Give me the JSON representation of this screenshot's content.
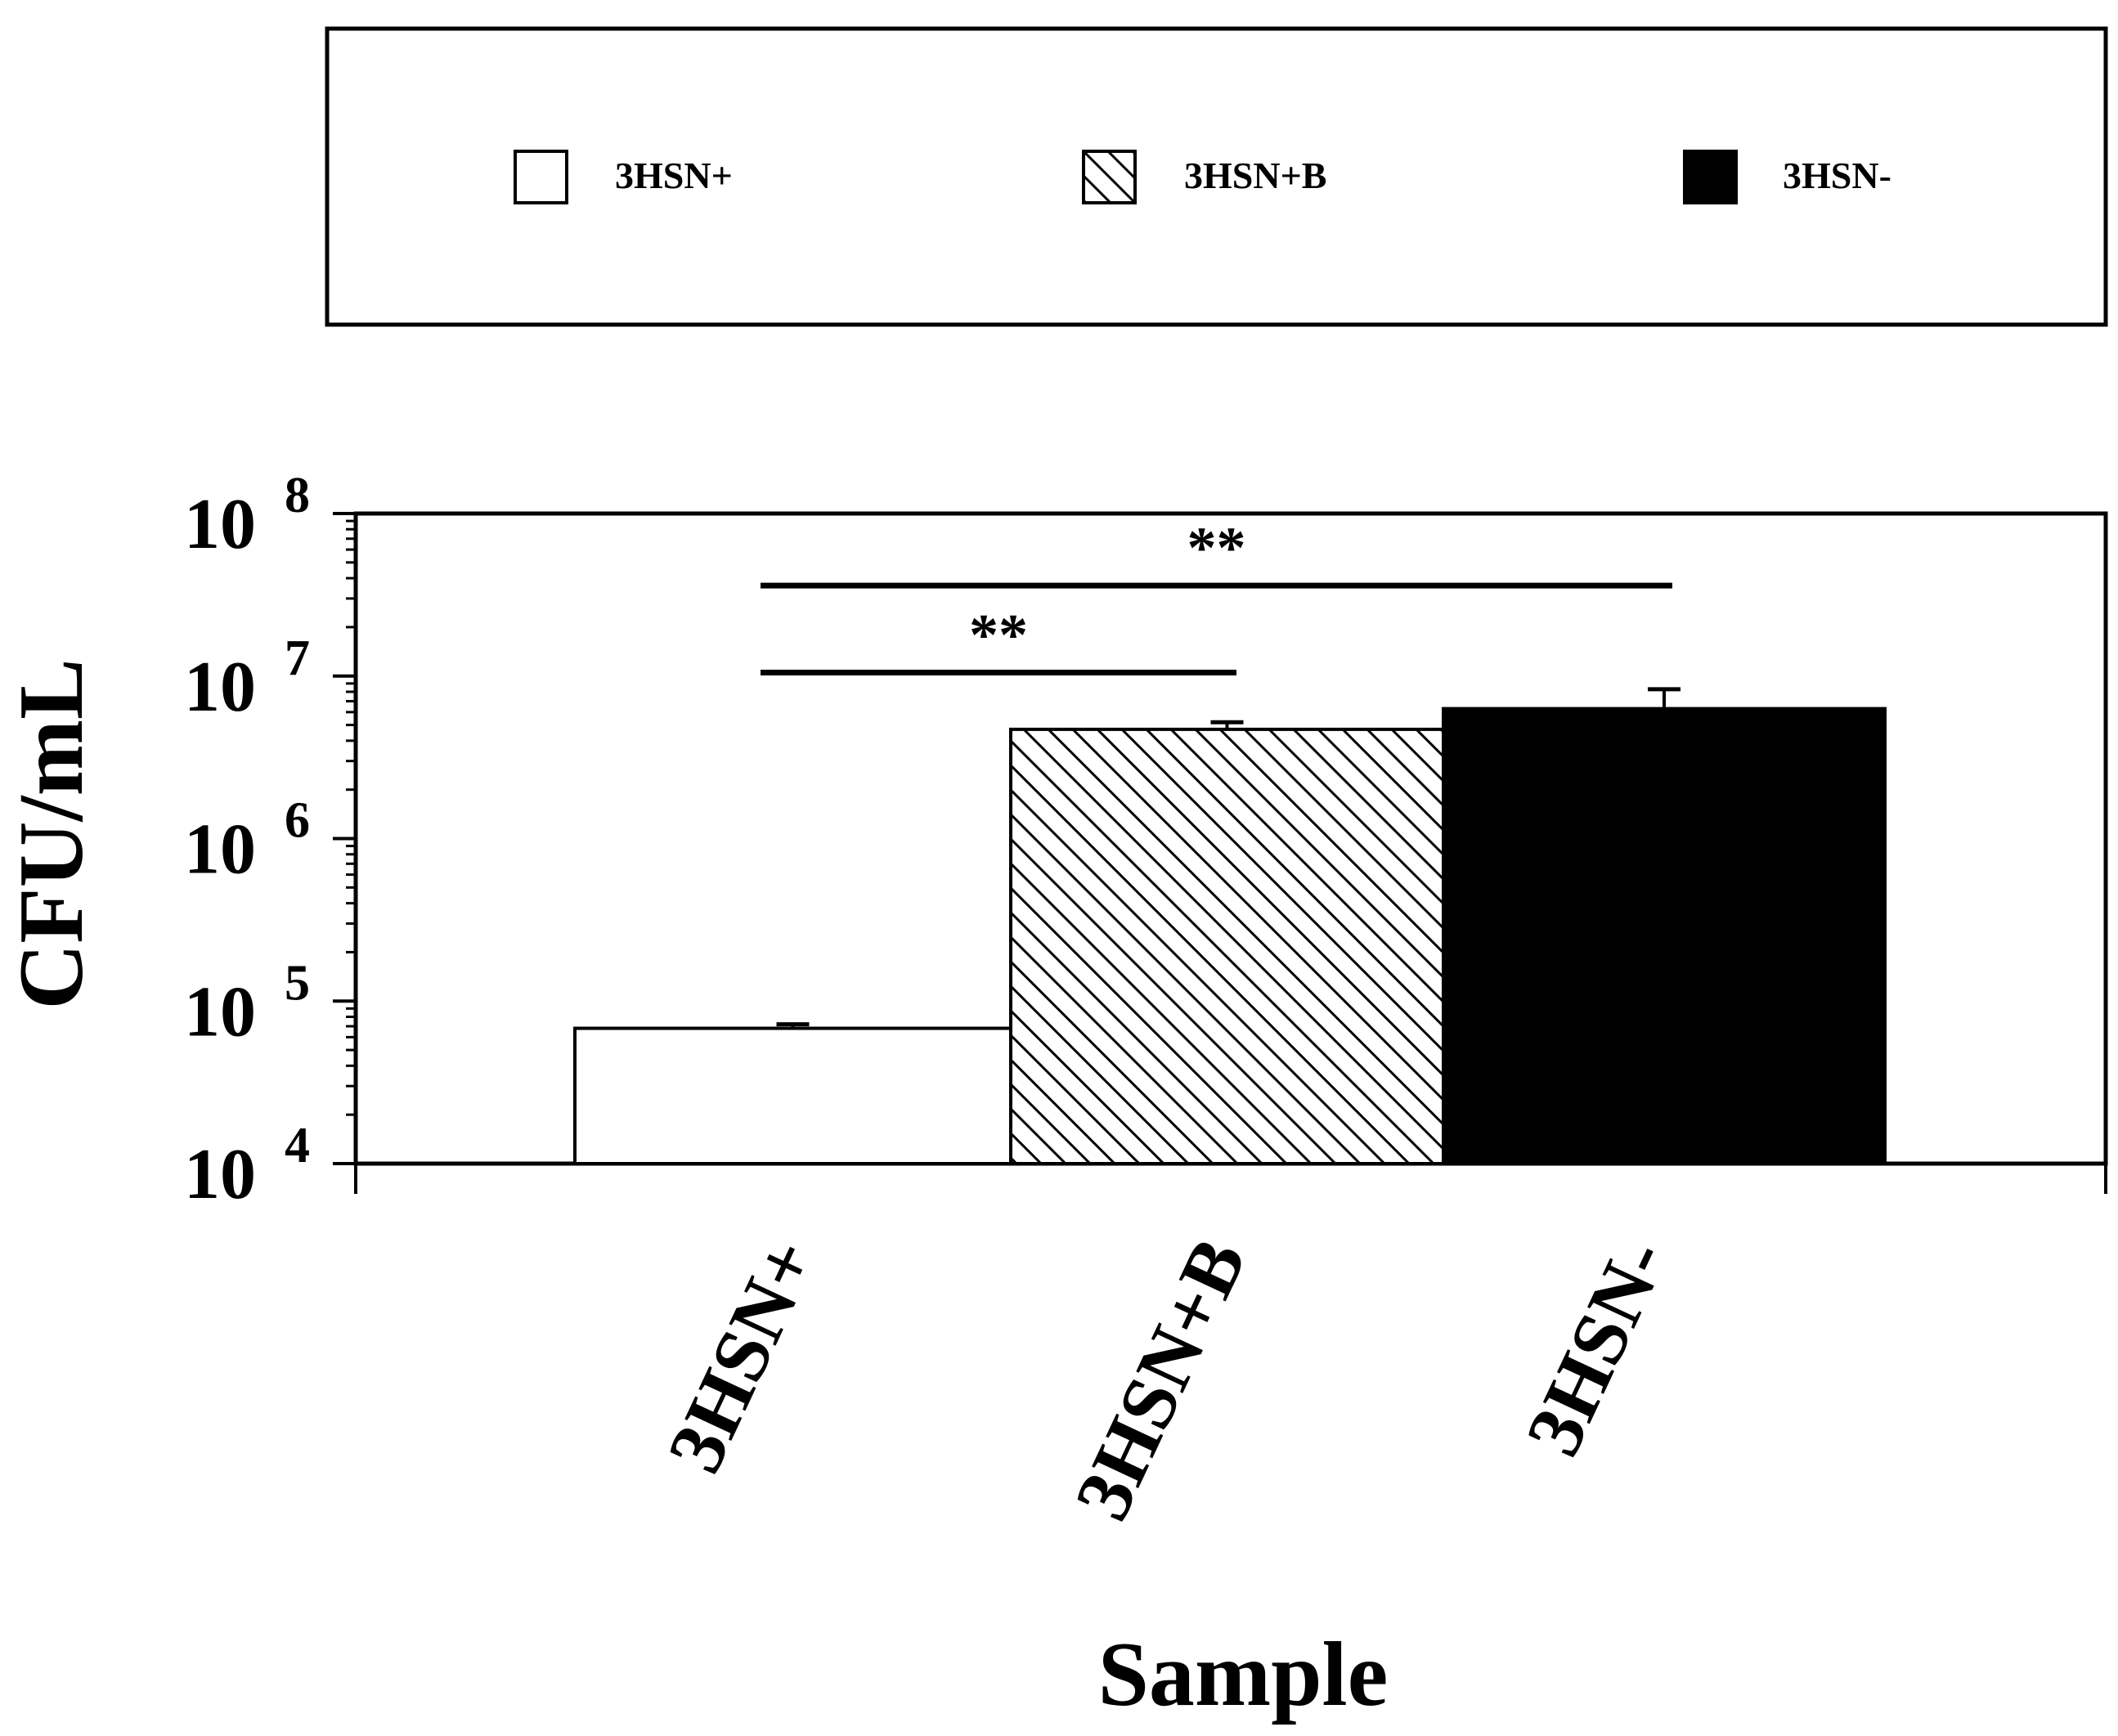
{
  "chart_data": {
    "type": "bar",
    "title": "",
    "xlabel": "Sample",
    "ylabel": "CFU/mL",
    "y_scale": "log10",
    "ylim": [
      10000,
      100000000
    ],
    "y_ticks": [
      {
        "base": "10",
        "exp": "4"
      },
      {
        "base": "10",
        "exp": "5"
      },
      {
        "base": "10",
        "exp": "6"
      },
      {
        "base": "10",
        "exp": "7"
      },
      {
        "base": "10",
        "exp": "8"
      }
    ],
    "categories": [
      "3HSN+",
      "3HSN+B",
      "3HSN-"
    ],
    "values": [
      68000,
      4700000,
      6300000
    ],
    "error_upper": [
      72000,
      5200000,
      8300000
    ],
    "fills": [
      "white",
      "diagonal-hatch",
      "#000000"
    ],
    "legend": {
      "placement": "top",
      "entries": [
        {
          "label": "3HSN+",
          "swatch": "white"
        },
        {
          "label": "3HSN+B",
          "swatch": "diagonal-hatch"
        },
        {
          "label": "3HSN-",
          "swatch": "#000000"
        }
      ]
    },
    "significance": [
      {
        "from": "3HSN+",
        "to": "3HSN+B",
        "y": 10500000,
        "label": "**"
      },
      {
        "from": "3HSN+",
        "to": "3HSN-",
        "y": 36000000,
        "label": "**"
      }
    ],
    "grid": false
  }
}
